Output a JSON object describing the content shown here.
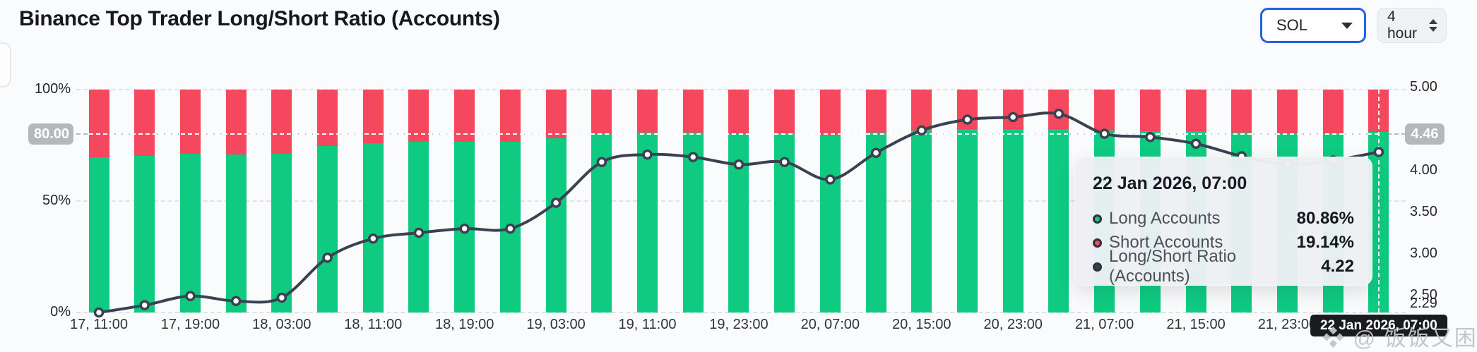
{
  "header": {
    "title": "Binance Top Trader Long/Short Ratio (Accounts)",
    "symbol": "SOL",
    "interval": "4 hour"
  },
  "chart_data": {
    "type": "bar",
    "subtype": "stacked-percent-bars-with-line-overlay",
    "categories": [
      "17, 11:00",
      "17, 15:00",
      "17, 19:00",
      "17, 23:00",
      "18, 03:00",
      "18, 07:00",
      "18, 11:00",
      "18, 15:00",
      "18, 19:00",
      "18, 23:00",
      "19, 03:00",
      "19, 07:00",
      "19, 11:00",
      "19, 19:00",
      "19, 23:00",
      "20, 03:00",
      "20, 07:00",
      "20, 11:00",
      "20, 15:00",
      "20, 19:00",
      "20, 23:00",
      "21, 03:00",
      "21, 07:00",
      "21, 11:00",
      "21, 15:00",
      "21, 19:00",
      "21, 23:00",
      "22, 03:00",
      "22, 07:00"
    ],
    "series": [
      {
        "name": "Long Accounts",
        "type": "bar",
        "color": "#0ecb81",
        "values": [
          69.6,
          70.41,
          71.35,
          70.85,
          71.18,
          74.68,
          76.08,
          76.47,
          76.74,
          76.74,
          78.31,
          80.39,
          80.73,
          80.62,
          80.28,
          80.39,
          79.55,
          80.81,
          81.75,
          82.17,
          82.27,
          82.39,
          81.62,
          81.48,
          81.2,
          80.66,
          80.28,
          80.47,
          80.86
        ]
      },
      {
        "name": "Short Accounts",
        "type": "bar",
        "color": "#f5475d",
        "values": [
          30.4,
          29.59,
          28.65,
          29.15,
          28.82,
          25.32,
          23.92,
          23.53,
          23.26,
          23.26,
          21.69,
          19.61,
          19.27,
          19.38,
          19.72,
          19.61,
          20.45,
          19.19,
          18.25,
          17.83,
          17.73,
          17.61,
          18.38,
          18.52,
          18.8,
          19.34,
          19.72,
          19.53,
          19.14
        ]
      },
      {
        "name": "Long/Short Ratio (Accounts)",
        "type": "line",
        "color": "#3a4151",
        "values": [
          2.29,
          2.38,
          2.49,
          2.43,
          2.47,
          2.95,
          3.18,
          3.25,
          3.3,
          3.3,
          3.61,
          4.1,
          4.19,
          4.16,
          4.07,
          4.1,
          3.89,
          4.21,
          4.48,
          4.61,
          4.64,
          4.68,
          4.44,
          4.4,
          4.32,
          4.17,
          4.07,
          4.12,
          4.22
        ]
      }
    ],
    "left_axis": {
      "ticks": [
        {
          "label": "100%",
          "pct": 100
        },
        {
          "label": "50%",
          "pct": 50
        },
        {
          "label": "0%",
          "pct": 0
        }
      ],
      "range": [
        0,
        100
      ],
      "marker": "80.00"
    },
    "right_axis": {
      "ticks": [
        {
          "label": "5.00",
          "value": 5.0
        },
        {
          "label": "4.00",
          "value": 4.0
        },
        {
          "label": "3.50",
          "value": 3.5
        },
        {
          "label": "3.00",
          "value": 3.0
        },
        {
          "label": "2.50",
          "value": 2.5
        },
        {
          "label": "2.29",
          "value": 2.29
        }
      ],
      "range": [
        2.29,
        5.0
      ],
      "marker": "4.46"
    },
    "x_tick_labels": [
      "17, 11:00",
      "17, 19:00",
      "18, 03:00",
      "18, 11:00",
      "18, 19:00",
      "19, 03:00",
      "19, 11:00",
      "19, 23:00",
      "20, 07:00",
      "20, 15:00",
      "20, 23:00",
      "21, 07:00",
      "21, 15:00",
      "21, 23:00"
    ],
    "x_tick_every": 2,
    "grid": "dashed-horizontal",
    "legend_position": "none",
    "hovered_index": 28,
    "hovered_label": "22 Jan 2026, 07:00"
  },
  "tooltip": {
    "date": "22 Jan 2026, 07:00",
    "rows": [
      {
        "label": "Long Accounts",
        "value": "80.86%",
        "color": "#0ecb81"
      },
      {
        "label": "Short Accounts",
        "value": "19.14%",
        "color": "#f5475d"
      },
      {
        "label": "Long/Short Ratio (Accounts)",
        "value": "4.22",
        "color": "#3a4151"
      }
    ]
  },
  "badges": {
    "left_marker": "80.00",
    "right_marker": "4.46"
  },
  "watermark": {
    "text": "❖ @ 饭饭又困了"
  }
}
